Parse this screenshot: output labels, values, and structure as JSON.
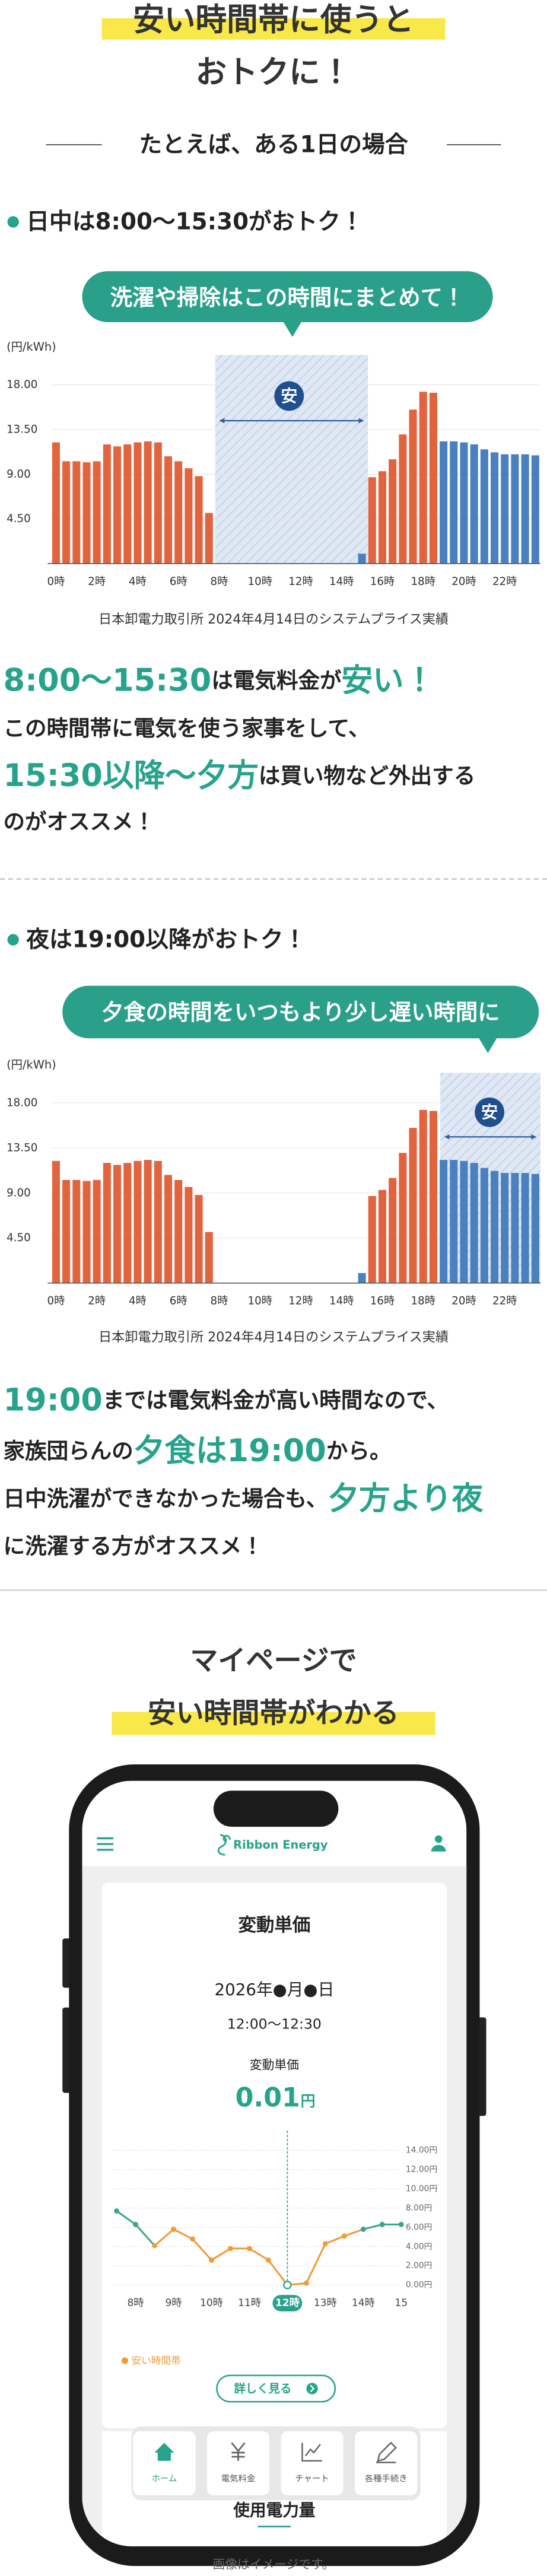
{
  "header": {
    "title_lines": [
      "安い時間帯に使うと",
      "おトクに！"
    ]
  },
  "example_heading": "たとえば、ある1日の場合",
  "section1": {
    "heading": "日中は8:00〜15:30がおトク！",
    "bubble": "洗濯や掃除はこの時間にまとめて！",
    "source": "日本卸電力取引所 2024年4月14日のシステムプライス実績",
    "lines": [
      [
        {
          "text": "8:00〜15:30",
          "em": true
        },
        {
          "text": "は電気料金が"
        },
        {
          "text": "安い！",
          "em": true
        }
      ],
      [
        {
          "text": "この時間帯に電気を使う家事をして、"
        }
      ],
      [
        {
          "text": "15:30以降〜夕方",
          "em": true
        },
        {
          "text": "は買い物など外出する"
        }
      ],
      [
        {
          "text": "のがオススメ！"
        }
      ]
    ]
  },
  "section2": {
    "heading": "夜は19:00以降がおトク！",
    "bubble": "夕食の時間をいつもより少し遅い時間に",
    "source": "日本卸電力取引所 2024年4月14日のシステムプライス実績",
    "lines": [
      [
        {
          "text": "19:00",
          "em": true
        },
        {
          "text": "までは電気料金が高い時間なので、"
        }
      ],
      [
        {
          "text": "家族団らんの"
        },
        {
          "text": "夕食は19:00",
          "em": true
        },
        {
          "text": "から。"
        }
      ],
      [
        {
          "text": "日中洗濯ができなかった場合も、"
        },
        {
          "text": "夕方より夜",
          "em": true
        }
      ],
      [
        {
          "text": "に洗濯する方がオススメ！"
        }
      ]
    ]
  },
  "mypage": {
    "heading_lines": [
      "マイページで",
      "安い時間帯がわかる"
    ],
    "app": {
      "brand": "Ribbon Energy",
      "card_title": "変動単価",
      "date": "2026年●月●日",
      "time": "12:00〜12:30",
      "price_label": "変動単価",
      "price": 0.01,
      "unit": "円",
      "button": "詳しく見る",
      "tabs": [
        "ホーム",
        "電気料金",
        "チャート",
        "各種手続き"
      ],
      "next_section": "使用電力量"
    },
    "caption": "画像はイメージです。"
  },
  "chart_data": [
    {
      "type": "bar",
      "y_label": "(円/kWh)",
      "badge": "安",
      "categories": [
        "0時",
        null,
        null,
        null,
        "2時",
        null,
        null,
        null,
        "4時",
        null,
        null,
        null,
        "6時",
        null,
        null,
        null,
        "8時",
        null,
        null,
        null,
        "10時",
        null,
        null,
        null,
        "12時",
        null,
        null,
        null,
        "14時",
        null,
        null,
        null,
        "16時",
        null,
        null,
        null,
        "18時",
        null,
        null,
        null,
        "20時",
        null,
        null,
        null,
        "22時",
        null,
        null,
        null
      ],
      "series": [
        {
          "color": "#e2643f",
          "values": [
            12.2,
            10.3,
            10.3,
            10.2,
            10.3,
            12.0,
            11.8,
            12.0,
            12.2,
            12.3,
            12.2,
            10.8,
            10.3,
            9.6,
            8.8,
            5.1,
            null,
            null,
            null,
            null,
            null,
            null,
            null,
            null,
            null,
            null,
            null,
            null,
            null,
            null,
            null,
            8.7,
            9.3,
            10.5,
            13.0,
            15.5,
            17.3,
            17.2,
            null,
            null,
            null,
            null,
            null,
            null,
            null,
            null,
            null,
            null
          ]
        },
        {
          "color": "#4a80bf",
          "values": [
            null,
            null,
            null,
            null,
            null,
            null,
            null,
            null,
            null,
            null,
            null,
            null,
            null,
            null,
            null,
            null,
            0.01,
            0.01,
            0.01,
            0.01,
            0.01,
            0.01,
            0.01,
            0.01,
            0.01,
            0.01,
            0.01,
            0.01,
            0.01,
            0.01,
            1.0,
            null,
            null,
            null,
            null,
            null,
            null,
            null,
            12.3,
            12.3,
            12.2,
            12.0,
            11.5,
            11.2,
            11.0,
            11.0,
            11.0,
            10.9
          ]
        }
      ],
      "ylim": [
        0,
        21
      ],
      "yticks": [
        {
          "value": 4.5,
          "label": "4.50"
        },
        {
          "value": 9,
          "label": "9.00"
        },
        {
          "value": 13.5,
          "label": "13.50"
        },
        {
          "value": 18,
          "label": "18.00"
        }
      ]
    },
    {
      "type": "bar",
      "y_label": "(円/kWh)",
      "badge": "安",
      "categories": [
        "0時",
        null,
        null,
        null,
        "2時",
        null,
        null,
        null,
        "4時",
        null,
        null,
        null,
        "6時",
        null,
        null,
        null,
        "8時",
        null,
        null,
        null,
        "10時",
        null,
        null,
        null,
        "12時",
        null,
        null,
        null,
        "14時",
        null,
        null,
        null,
        "16時",
        null,
        null,
        null,
        "18時",
        null,
        null,
        null,
        "20時",
        null,
        null,
        null,
        "22時",
        null,
        null,
        null
      ],
      "series": [
        {
          "color": "#e2643f",
          "values": [
            12.2,
            10.3,
            10.3,
            10.2,
            10.3,
            12.0,
            11.8,
            12.0,
            12.2,
            12.3,
            12.2,
            10.8,
            10.3,
            9.6,
            8.8,
            5.1,
            null,
            null,
            null,
            null,
            null,
            null,
            null,
            null,
            null,
            null,
            null,
            null,
            null,
            null,
            null,
            8.7,
            9.3,
            10.5,
            13.0,
            15.5,
            17.3,
            17.2,
            null,
            null,
            null,
            null,
            null,
            null,
            null,
            null,
            null,
            null
          ]
        },
        {
          "color": "#4a80bf",
          "values": [
            null,
            null,
            null,
            null,
            null,
            null,
            null,
            null,
            null,
            null,
            null,
            null,
            null,
            null,
            null,
            null,
            0.01,
            0.01,
            0.01,
            0.01,
            0.01,
            0.01,
            0.01,
            0.01,
            0.01,
            0.01,
            0.01,
            0.01,
            0.01,
            0.01,
            1.0,
            null,
            null,
            null,
            null,
            null,
            null,
            null,
            12.3,
            12.3,
            12.2,
            12.0,
            11.5,
            11.2,
            11.0,
            11.0,
            11.0,
            10.9
          ]
        }
      ],
      "ylim": [
        0,
        21
      ],
      "yticks": [
        {
          "value": 4.5,
          "label": "4.50"
        },
        {
          "value": 9,
          "label": "9.00"
        },
        {
          "value": 13.5,
          "label": "13.50"
        },
        {
          "value": 18,
          "label": "18.00"
        }
      ]
    },
    {
      "type": "line",
      "categories": [
        null,
        "8時",
        null,
        "9時",
        null,
        "10時",
        null,
        "11時",
        null,
        "12時",
        null,
        "13時",
        null,
        "14時",
        null,
        "15"
      ],
      "series": [
        {
          "name": "安い時間帯",
          "color": "#f29a38",
          "point_colors": [
            "#3aa58c",
            "#3aa58c",
            "#f29a38",
            "#f29a38",
            "#f29a38",
            "#f29a38",
            "#f29a38",
            "#f29a38",
            "#f29a38",
            "#f29a38",
            "#f29a38",
            "#f29a38",
            "#f29a38",
            "#3aa58c",
            "#3aa58c",
            "#3aa58c"
          ],
          "values": [
            7.7,
            6.3,
            4.1,
            5.8,
            4.8,
            2.6,
            3.8,
            3.8,
            2.6,
            0.01,
            0.2,
            4.3,
            5.1,
            5.8,
            6.3,
            6.3
          ]
        }
      ],
      "selected": 9,
      "ylim": [
        0,
        14
      ],
      "yticks": [
        {
          "value": 0,
          "label": "0.00円"
        },
        {
          "value": 2,
          "label": "2.00円"
        },
        {
          "value": 4,
          "label": "4.00円"
        },
        {
          "value": 6,
          "label": "6.00円"
        },
        {
          "value": 8,
          "label": "8.00円"
        },
        {
          "value": 10,
          "label": "10.00円"
        },
        {
          "value": 12,
          "label": "12.00円"
        },
        {
          "value": 14,
          "label": "14.00円"
        }
      ]
    }
  ]
}
